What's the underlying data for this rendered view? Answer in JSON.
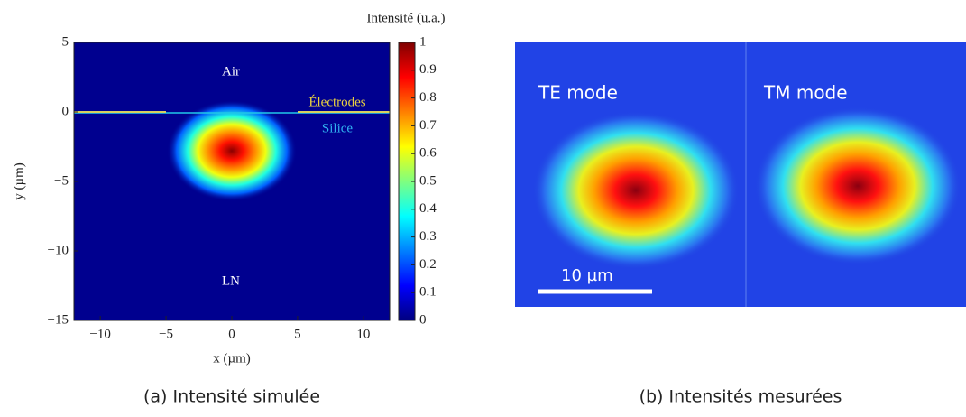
{
  "chart_data": {
    "type": "heatmap",
    "xlabel": "x (µm)",
    "ylabel": "y (µm)",
    "xlim": [
      -12,
      12
    ],
    "ylim": [
      -15,
      5
    ],
    "xticks": [
      {
        "value": -10,
        "label": "−10"
      },
      {
        "value": -5,
        "label": "−5"
      },
      0,
      5,
      10
    ],
    "yticks": [
      {
        "value": -15,
        "label": "−15"
      },
      {
        "value": -10,
        "label": "−10"
      },
      {
        "value": -5,
        "label": "−5"
      },
      0,
      5
    ],
    "colorbar_label": "Intensité (u.a.)",
    "clim": [
      0,
      1
    ],
    "cticks": [
      0,
      0.1,
      0.2,
      0.3,
      0.4,
      0.5,
      0.6,
      0.7,
      0.8,
      0.9,
      1
    ],
    "mode": {
      "x": 0,
      "y": -2.8,
      "peak": 1
    },
    "annotations": {
      "air": "Air",
      "electrodes": "Électrodes",
      "silica": "Silice",
      "substrate": "LN"
    },
    "caption": "(a) Intensité simulée"
  },
  "measured": {
    "panels": [
      "TE mode",
      "TM mode"
    ],
    "scale_bar": "10 µm",
    "caption": "(b) Intensités mesurées"
  }
}
